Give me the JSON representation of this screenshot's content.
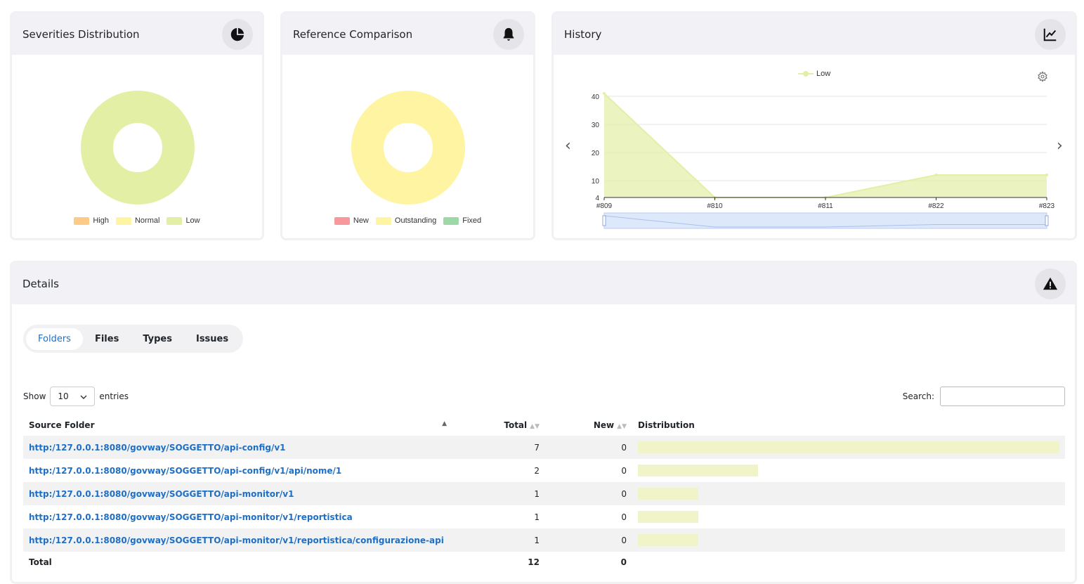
{
  "cards": {
    "severities": {
      "title": "Severities Distribution",
      "icon": "pie-chart-icon"
    },
    "reference": {
      "title": "Reference Comparison",
      "icon": "bell-icon"
    },
    "history": {
      "title": "History",
      "icon": "line-chart-icon"
    },
    "details": {
      "title": "Details",
      "icon": "warning-icon"
    }
  },
  "severities_chart": {
    "legend": [
      {
        "label": "High",
        "color": "#feca87"
      },
      {
        "label": "Normal",
        "color": "#fef4a2"
      },
      {
        "label": "Low",
        "color": "#e2efa5"
      }
    ]
  },
  "reference_chart": {
    "legend": [
      {
        "label": "New",
        "color": "#f7999c"
      },
      {
        "label": "Outstanding",
        "color": "#fef4a2"
      },
      {
        "label": "Fixed",
        "color": "#9cd9a6"
      }
    ]
  },
  "chart_data": [
    {
      "type": "pie",
      "categories": [
        "High",
        "Normal",
        "Low"
      ],
      "values": [
        0,
        0,
        12
      ],
      "title": "",
      "xlabel": "",
      "ylabel": ""
    },
    {
      "type": "pie",
      "categories": [
        "New",
        "Outstanding",
        "Fixed"
      ],
      "values": [
        0,
        12,
        0
      ],
      "title": "",
      "xlabel": "",
      "ylabel": ""
    },
    {
      "type": "area",
      "categories": [
        "#809",
        "#810",
        "#811",
        "#822",
        "#823"
      ],
      "series": [
        {
          "name": "Low",
          "values": [
            41,
            4,
            4,
            12,
            12
          ]
        }
      ],
      "y_ticks": [
        4,
        10,
        20,
        30,
        40
      ],
      "ylim": [
        4,
        41
      ],
      "title": "",
      "xlabel": "",
      "ylabel": "",
      "grid": true,
      "legend": "top-center",
      "color": "#e2efa5"
    }
  ],
  "tabs": [
    {
      "label": "Folders",
      "active": true
    },
    {
      "label": "Files",
      "active": false
    },
    {
      "label": "Types",
      "active": false
    },
    {
      "label": "Issues",
      "active": false
    }
  ],
  "table_controls": {
    "show_label": "Show",
    "entries_value": "10",
    "entries_label": "entries",
    "search_label": "Search:"
  },
  "table": {
    "columns": [
      "Source Folder",
      "Total",
      "New",
      "Distribution"
    ],
    "rows": [
      {
        "folder": "http:/127.0.0.1:8080/govway/SOGGETTO/api-config/v1",
        "total": "7",
        "new": "0",
        "share": 1.0
      },
      {
        "folder": "http:/127.0.0.1:8080/govway/SOGGETTO/api-config/v1/api/nome/1",
        "total": "2",
        "new": "0",
        "share": 0.2857
      },
      {
        "folder": "http:/127.0.0.1:8080/govway/SOGGETTO/api-monitor/v1",
        "total": "1",
        "new": "0",
        "share": 0.1429
      },
      {
        "folder": "http:/127.0.0.1:8080/govway/SOGGETTO/api-monitor/v1/reportistica",
        "total": "1",
        "new": "0",
        "share": 0.1429
      },
      {
        "folder": "http:/127.0.0.1:8080/govway/SOGGETTO/api-monitor/v1/reportistica/configurazione-api",
        "total": "1",
        "new": "0",
        "share": 0.1429
      }
    ],
    "footer": {
      "label": "Total",
      "total": "12",
      "new": "0"
    }
  }
}
